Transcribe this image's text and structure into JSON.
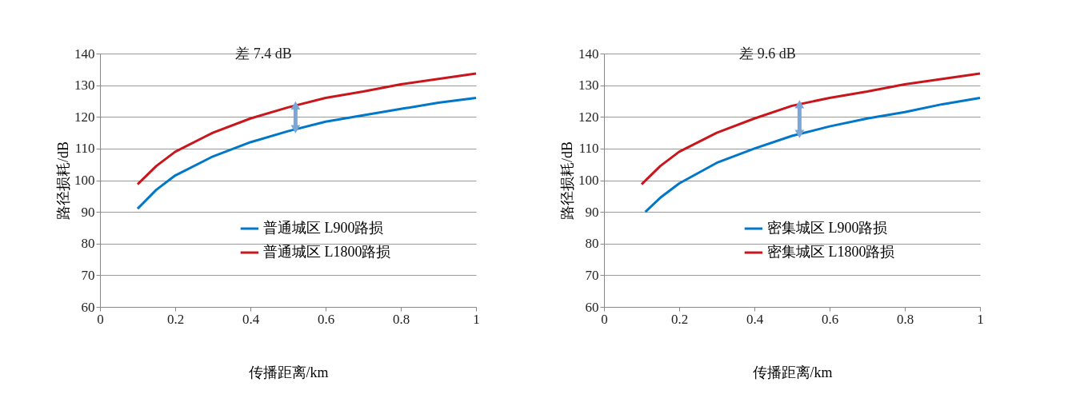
{
  "chart_data": [
    {
      "type": "line",
      "xlabel": "传播距离/km",
      "ylabel": "路径损耗/dB",
      "xlim": [
        0,
        1
      ],
      "xticks": [
        0,
        0.2,
        0.4,
        0.6,
        0.8,
        1
      ],
      "ylim": [
        60,
        140
      ],
      "yticks": [
        60,
        70,
        80,
        90,
        100,
        110,
        120,
        130,
        140
      ],
      "grid": "y",
      "legend": "bottom right",
      "line_style": "solid",
      "marker": "none",
      "annotations": [
        {
          "text": "差 7.4 dB",
          "x": 0.52,
          "y": 124
        }
      ],
      "series": [
        {
          "name": "普通城区 L900路损",
          "color": "#0077c8",
          "x": [
            0.1,
            0.15,
            0.2,
            0.3,
            0.4,
            0.5,
            0.6,
            0.7,
            0.8,
            0.9,
            1
          ],
          "values": [
            91,
            97,
            101.5,
            107.5,
            112,
            115.5,
            118.5,
            120.5,
            122.5,
            124.5,
            126
          ]
        },
        {
          "name": "普通城区 L1800路损",
          "color": "#c8161d",
          "x": [
            0.1,
            0.15,
            0.2,
            0.3,
            0.4,
            0.5,
            0.6,
            0.7,
            0.8,
            0.9,
            1
          ],
          "values": [
            98.7,
            104.5,
            109,
            115,
            119.5,
            123,
            126,
            128,
            130.3,
            132,
            133.7
          ]
        }
      ]
    },
    {
      "type": "line",
      "xlabel": "传播距离/km",
      "ylabel": "路径损耗/dB",
      "xlim": [
        0,
        1
      ],
      "xticks": [
        0,
        0.2,
        0.4,
        0.6,
        0.8,
        1
      ],
      "ylim": [
        60,
        140
      ],
      "yticks": [
        60,
        70,
        80,
        90,
        100,
        110,
        120,
        130,
        140
      ],
      "grid": "y",
      "legend": "bottom right",
      "line_style": "solid",
      "marker": "none",
      "annotations": [
        {
          "text": "差 9.6 dB",
          "x": 0.52,
          "y": 124
        }
      ],
      "series": [
        {
          "name": "密集城区 L900路损",
          "color": "#0077c8",
          "x": [
            0.11,
            0.15,
            0.2,
            0.3,
            0.4,
            0.5,
            0.6,
            0.7,
            0.8,
            0.9,
            1
          ],
          "values": [
            90,
            94.5,
            99,
            105.5,
            110,
            114,
            117,
            119.5,
            121.5,
            124,
            126
          ]
        },
        {
          "name": "密集城区 L1800路损",
          "color": "#c8161d",
          "x": [
            0.1,
            0.15,
            0.2,
            0.3,
            0.4,
            0.5,
            0.6,
            0.7,
            0.8,
            0.9,
            1
          ],
          "values": [
            98.7,
            104.5,
            109,
            115,
            119.5,
            123.5,
            126,
            128,
            130.3,
            132,
            133.7
          ]
        }
      ]
    }
  ]
}
